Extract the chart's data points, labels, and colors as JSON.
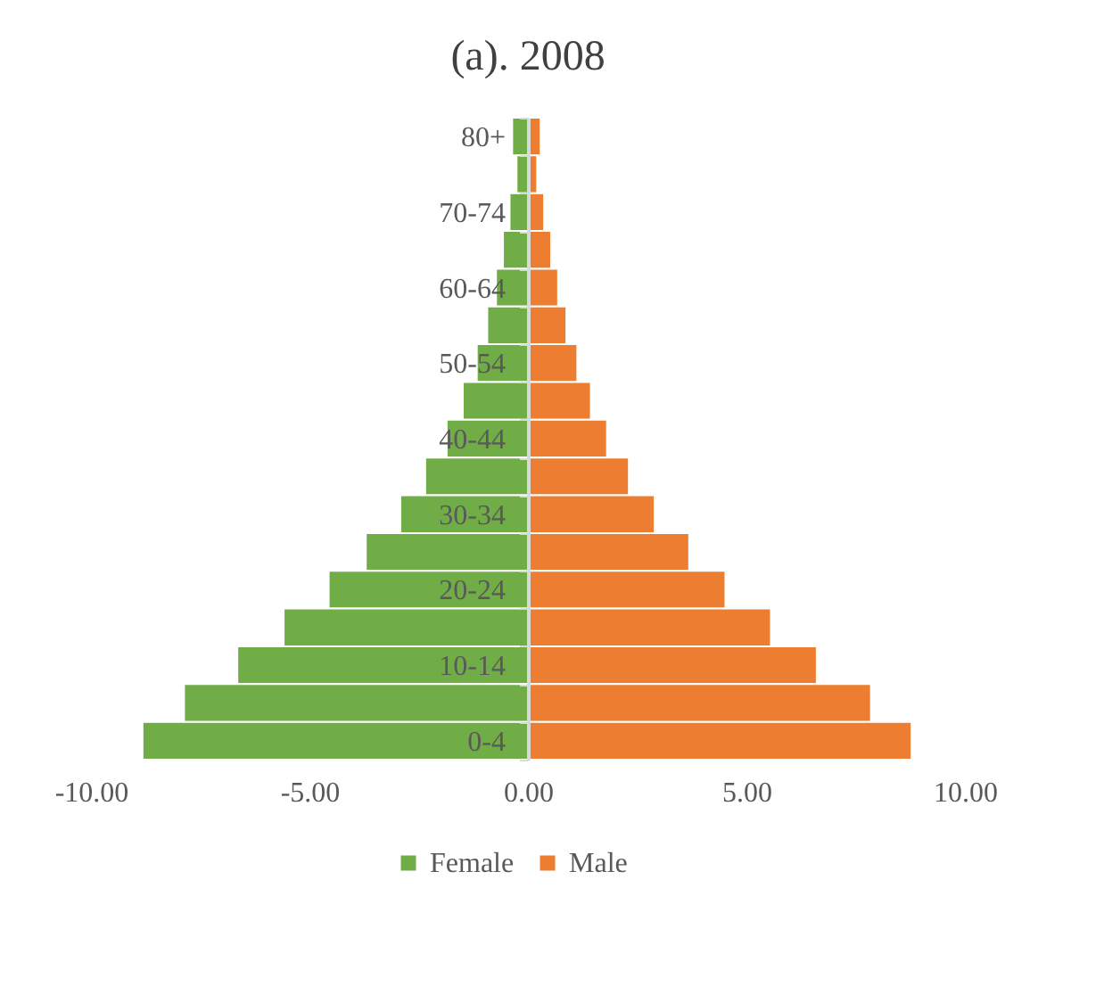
{
  "chart_data": {
    "type": "bar",
    "orientation": "horizontal",
    "title": "(a). 2008",
    "categories": [
      "80+",
      null,
      "70-74",
      null,
      "60-64",
      null,
      "50-54",
      null,
      "40-44",
      null,
      "30-34",
      null,
      "20-24",
      null,
      "10-14",
      null,
      "0-4"
    ],
    "series": [
      {
        "name": "Female",
        "color": "#70ad47",
        "values": [
          -0.36,
          -0.26,
          -0.42,
          -0.57,
          -0.73,
          -0.93,
          -1.17,
          -1.49,
          -1.86,
          -2.35,
          -2.92,
          -3.71,
          -4.56,
          -5.59,
          -6.65,
          -7.87,
          -8.82
        ]
      },
      {
        "name": "Male",
        "color": "#ed7d31",
        "values": [
          0.29,
          0.21,
          0.37,
          0.53,
          0.69,
          0.88,
          1.13,
          1.44,
          1.81,
          2.31,
          2.9,
          3.69,
          4.52,
          5.56,
          6.61,
          7.85,
          8.78
        ]
      }
    ],
    "xlim": [
      -10,
      10
    ],
    "xticks": [
      {
        "value": -10,
        "label": "-10.00"
      },
      {
        "value": -5,
        "label": "-5.00"
      },
      {
        "value": 0,
        "label": "0.00"
      },
      {
        "value": 5,
        "label": "5.00"
      },
      {
        "value": 10,
        "label": "10.00"
      }
    ],
    "grid": false,
    "legend": "bottom",
    "stacked": true
  }
}
